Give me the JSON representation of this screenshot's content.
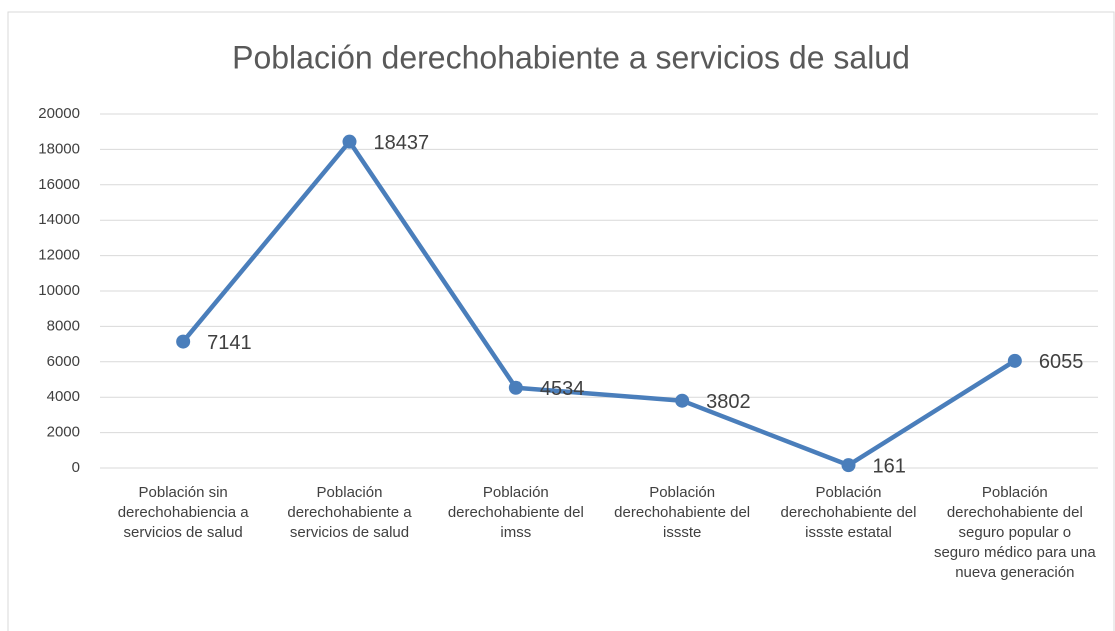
{
  "chart_data": {
    "type": "line",
    "title": "Población derechohabiente a servicios de salud",
    "categories": [
      "Población sin derechohabiencia a servicios de salud",
      "Población derechohabiente a servicios de salud",
      "Población derechohabiente del imss",
      "Población derechohabiente del issste",
      "Población derechohabiente del issste estatal",
      "Población derechohabiente del seguro popular o seguro médico para una nueva generación"
    ],
    "values": [
      7141,
      18437,
      4534,
      3802,
      161,
      6055
    ],
    "color": "#4a7ebb",
    "ylim": [
      0,
      20000
    ],
    "yticks": [
      0,
      2000,
      4000,
      6000,
      8000,
      10000,
      12000,
      14000,
      16000,
      18000,
      20000
    ],
    "grid": true
  }
}
